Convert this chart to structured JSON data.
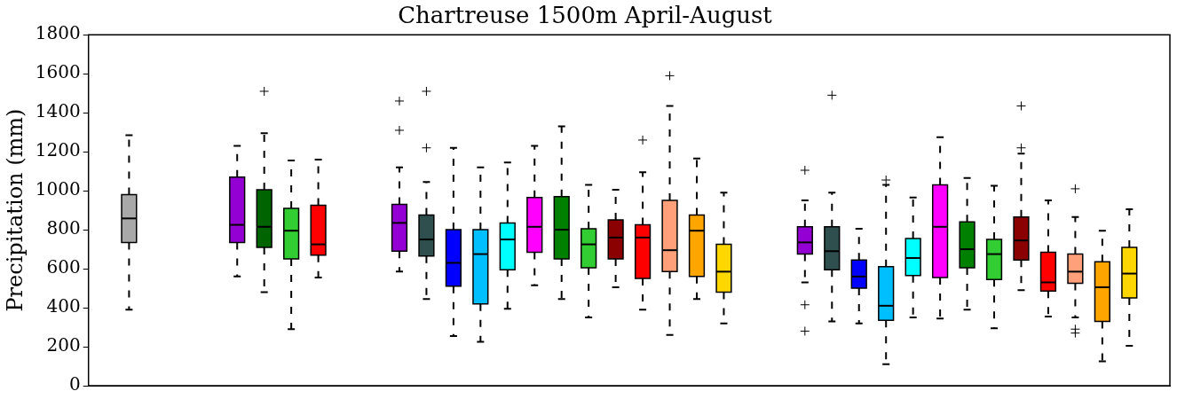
{
  "chart_data": {
    "type": "box",
    "title": "Chartreuse 1500m April-August",
    "ylabel": "Precipitation (mm)",
    "categories": [
      null,
      null,
      null,
      null,
      null,
      null,
      null,
      null,
      null,
      null,
      null,
      null,
      null,
      null,
      null,
      null,
      null,
      null,
      null,
      null,
      null,
      null,
      null,
      null,
      null,
      null,
      null,
      null,
      null,
      null,
      null,
      null,
      null,
      null,
      null,
      null,
      null,
      null,
      null,
      null
    ],
    "ylim": [
      0,
      1800
    ],
    "yticks": [
      0,
      200,
      400,
      600,
      800,
      1000,
      1200,
      1400,
      1600,
      1800
    ],
    "grid": false,
    "legend": false,
    "colors": [
      null,
      "#a9a9a9",
      null,
      null,
      null,
      "#9400d3",
      "#006400",
      "#32cd32",
      "#ff0000",
      null,
      null,
      "#9400d3",
      "#2f4f4f",
      "#0000ff",
      "#00bfff",
      "#00ffff",
      "#ff00ff",
      "#008000",
      "#32cd32",
      "#8b0000",
      "#ff0000",
      "#ffa07a",
      "#ffa500",
      "#ffd700",
      null,
      null,
      "#9400d3",
      "#2f4f4f",
      "#0000ff",
      "#00bfff",
      "#00ffff",
      "#ff00ff",
      "#008000",
      "#32cd32",
      "#8b0000",
      "#ff0000",
      "#ffa07a",
      "#ffa500",
      "#ffd700",
      null
    ],
    "boxes": [
      null,
      {
        "low": 390,
        "q1": 735,
        "median": 858,
        "q3": 980,
        "high": 1285
      },
      null,
      null,
      null,
      {
        "low": 560,
        "q1": 735,
        "median": 825,
        "q3": 1070,
        "high": 1230
      },
      {
        "low": 480,
        "q1": 710,
        "median": 815,
        "q3": 1005,
        "high": 1295,
        "outliers": [
          1510
        ]
      },
      {
        "low": 290,
        "q1": 650,
        "median": 795,
        "q3": 910,
        "high": 1155
      },
      {
        "low": 555,
        "q1": 670,
        "median": 725,
        "q3": 925,
        "high": 1160
      },
      null,
      null,
      {
        "low": 585,
        "q1": 690,
        "median": 835,
        "q3": 930,
        "high": 1120,
        "outliers": [
          1460,
          1310
        ]
      },
      {
        "low": 445,
        "q1": 665,
        "median": 750,
        "q3": 875,
        "high": 1045,
        "outliers": [
          1510,
          1220
        ]
      },
      {
        "low": 255,
        "q1": 510,
        "median": 630,
        "q3": 800,
        "high": 1220
      },
      {
        "low": 225,
        "q1": 420,
        "median": 675,
        "q3": 800,
        "high": 1120
      },
      {
        "low": 395,
        "q1": 595,
        "median": 750,
        "q3": 835,
        "high": 1145
      },
      {
        "low": 515,
        "q1": 685,
        "median": 815,
        "q3": 965,
        "high": 1230
      },
      {
        "low": 445,
        "q1": 650,
        "median": 800,
        "q3": 970,
        "high": 1330
      },
      {
        "low": 350,
        "q1": 605,
        "median": 725,
        "q3": 805,
        "high": 1030
      },
      {
        "low": 505,
        "q1": 650,
        "median": 760,
        "q3": 850,
        "high": 1005
      },
      {
        "low": 390,
        "q1": 550,
        "median": 760,
        "q3": 825,
        "high": 1095,
        "outliers": [
          1260
        ]
      },
      {
        "low": 260,
        "q1": 585,
        "median": 695,
        "q3": 950,
        "high": 1435,
        "outliers": [
          1590
        ]
      },
      {
        "low": 445,
        "q1": 560,
        "median": 795,
        "q3": 875,
        "high": 1165
      },
      {
        "low": 320,
        "q1": 480,
        "median": 585,
        "q3": 725,
        "high": 990
      },
      null,
      null,
      {
        "low": 530,
        "q1": 675,
        "median": 735,
        "q3": 815,
        "high": 950,
        "outliers": [
          1105,
          415,
          280
        ]
      },
      {
        "low": 330,
        "q1": 595,
        "median": 690,
        "q3": 815,
        "high": 990,
        "outliers": [
          1490
        ]
      },
      {
        "low": 320,
        "q1": 500,
        "median": 560,
        "q3": 645,
        "high": 805
      },
      {
        "low": 110,
        "q1": 335,
        "median": 410,
        "q3": 610,
        "high": 1030,
        "outliers": [
          1055
        ]
      },
      {
        "low": 350,
        "q1": 565,
        "median": 655,
        "q3": 755,
        "high": 965
      },
      {
        "low": 345,
        "q1": 555,
        "median": 815,
        "q3": 1030,
        "high": 1275
      },
      {
        "low": 390,
        "q1": 605,
        "median": 700,
        "q3": 840,
        "high": 1065
      },
      {
        "low": 295,
        "q1": 545,
        "median": 675,
        "q3": 750,
        "high": 1025
      },
      {
        "low": 490,
        "q1": 645,
        "median": 745,
        "q3": 865,
        "high": 1190,
        "outliers": [
          1435,
          1220
        ]
      },
      {
        "low": 355,
        "q1": 485,
        "median": 530,
        "q3": 685,
        "high": 950
      },
      {
        "low": 350,
        "q1": 525,
        "median": 585,
        "q3": 675,
        "high": 865,
        "outliers": [
          1010,
          290,
          270
        ]
      },
      {
        "low": 125,
        "q1": 330,
        "median": 505,
        "q3": 635,
        "high": 795
      },
      {
        "low": 205,
        "q1": 450,
        "median": 575,
        "q3": 710,
        "high": 905
      },
      null
    ]
  }
}
